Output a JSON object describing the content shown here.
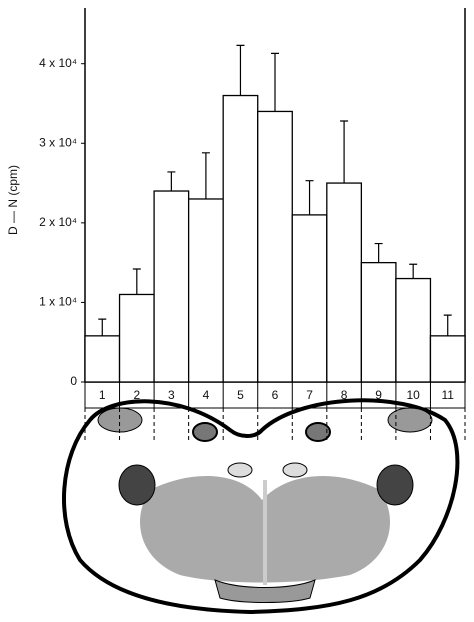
{
  "chart_data": {
    "type": "bar",
    "y_label": "D — N (cpm)",
    "categories": [
      "1",
      "2",
      "3",
      "4",
      "5",
      "6",
      "7",
      "8",
      "9",
      "10",
      "11"
    ],
    "values": [
      5800,
      11000,
      24000,
      23000,
      36000,
      34000,
      21000,
      25000,
      15000,
      13000,
      5800
    ],
    "errors": [
      2100,
      3200,
      2400,
      5800,
      6300,
      7300,
      4300,
      7800,
      2400,
      1800,
      2600
    ],
    "color": "#ffffff",
    "ylim": [
      0,
      47000
    ],
    "yticks": [
      0,
      {
        "value": 10000,
        "label": "1 x 10⁴"
      },
      {
        "value": 20000,
        "label": "2 x 10⁴"
      },
      {
        "value": 30000,
        "label": "3 x 10⁴"
      },
      {
        "value": 40000,
        "label": "4 x 10⁴"
      }
    ]
  }
}
